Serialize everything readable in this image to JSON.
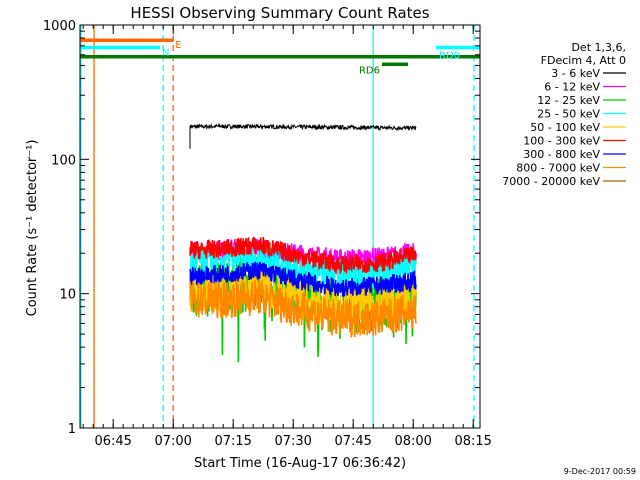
{
  "chart_data": {
    "type": "line",
    "title": "HESSI Observing Summary Count Rates",
    "xlabel": "Start Time (16-Aug-17 06:36:42)",
    "ylabel": "Count Rate (s⁻¹ detector⁻¹)",
    "y_scale": "log",
    "ylim": [
      1,
      1000
    ],
    "x_unit": "minutes after 06:36:42",
    "xlim": [
      0,
      100
    ],
    "x_ticks": [
      "06:45",
      "07:00",
      "07:15",
      "07:30",
      "07:45",
      "08:00",
      "08:15"
    ],
    "x_tick_minutes": [
      8.3,
      23.3,
      38.3,
      53.3,
      68.3,
      83.3,
      98.3
    ],
    "y_ticks": [
      "1",
      "10",
      "100",
      "1000"
    ],
    "y_tick_values": [
      1,
      10,
      100,
      1000
    ],
    "legend_header": [
      "Det 1,3,6,",
      "FDecim 4, Att 0"
    ],
    "legend_position": "right",
    "series": [
      {
        "name": "3 - 6 keV",
        "color": "#000000",
        "x": [
          27.5,
          35,
          45,
          55,
          65,
          75,
          84
        ],
        "values": [
          175,
          176,
          175,
          174,
          173,
          172,
          171
        ]
      },
      {
        "name": "6 - 12 keV",
        "color": "#ff00ff",
        "x": [
          27.5,
          35,
          45,
          55,
          65,
          75,
          84
        ],
        "values": [
          20.5,
          21,
          21.5,
          19.5,
          18,
          18.5,
          20
        ]
      },
      {
        "name": "12 - 25 keV",
        "color": "#00cc00",
        "x": [
          27.5,
          35,
          45,
          55,
          65,
          75,
          84
        ],
        "values": [
          10.5,
          11,
          12,
          9.5,
          8,
          8.5,
          10
        ]
      },
      {
        "name": "25 - 50 keV",
        "color": "#00ffff",
        "x": [
          27.5,
          35,
          45,
          55,
          65,
          75,
          84
        ],
        "values": [
          17,
          17.5,
          18.5,
          15.5,
          14,
          14.5,
          17
        ]
      },
      {
        "name": "50 - 100 keV",
        "color": "#ffcc00",
        "x": [
          27.5,
          35,
          45,
          55,
          65,
          75,
          84
        ],
        "values": [
          10,
          10.5,
          11.5,
          9,
          8,
          8.5,
          9.5
        ]
      },
      {
        "name": "100 - 300 keV",
        "color": "#ff0000",
        "x": [
          27.5,
          35,
          45,
          55,
          65,
          75,
          84
        ],
        "values": [
          21,
          21.5,
          23,
          19,
          16.5,
          17,
          19.5
        ]
      },
      {
        "name": "300 - 800 keV",
        "color": "#0000ff",
        "x": [
          27.5,
          35,
          45,
          55,
          65,
          75,
          84
        ],
        "values": [
          13.5,
          14,
          15,
          12.5,
          11,
          11.5,
          12.5
        ]
      },
      {
        "name": "800 - 7000 keV",
        "color": "#ff8800",
        "x": [
          27.5,
          35,
          45,
          55,
          65,
          75,
          84
        ],
        "values": [
          9,
          9,
          9.5,
          7.5,
          6.5,
          6.6,
          7.5
        ]
      },
      {
        "name": "7000 - 20000 keV",
        "color": "#996600",
        "x": [],
        "values": []
      }
    ],
    "annotations": [
      {
        "label": "E",
        "color": "#ff6600",
        "x_start": 0,
        "x_end": 23.3,
        "value": 770
      },
      {
        "label": "N",
        "color": "#00ffff",
        "x_start": 0,
        "x_end": 20,
        "value": 680
      },
      {
        "label": "",
        "color": "#007700",
        "x_start": 0,
        "x_end": 100,
        "value": 580
      },
      {
        "label": "RD0",
        "color": "#00ffff",
        "x_start": 89,
        "x_end": 100,
        "value": 680
      },
      {
        "label": "RD6",
        "color": "#007700",
        "x_start": 75.5,
        "x_end": 82,
        "value": 510
      }
    ],
    "vertical_lines": [
      {
        "x": 0.2,
        "color": "#00ffff",
        "style": "solid"
      },
      {
        "x": 3.5,
        "color": "#ff6600",
        "style": "solid"
      },
      {
        "x": 20.8,
        "color": "#00ffff",
        "style": "dashed"
      },
      {
        "x": 23.3,
        "color": "#ff6600",
        "style": "dashed"
      },
      {
        "x": 73.3,
        "color": "#00ffff",
        "style": "solid"
      },
      {
        "x": 98.5,
        "color": "#00ffff",
        "style": "dashed"
      }
    ]
  },
  "footer": {
    "timestamp": "9-Dec-2017 00:59"
  }
}
